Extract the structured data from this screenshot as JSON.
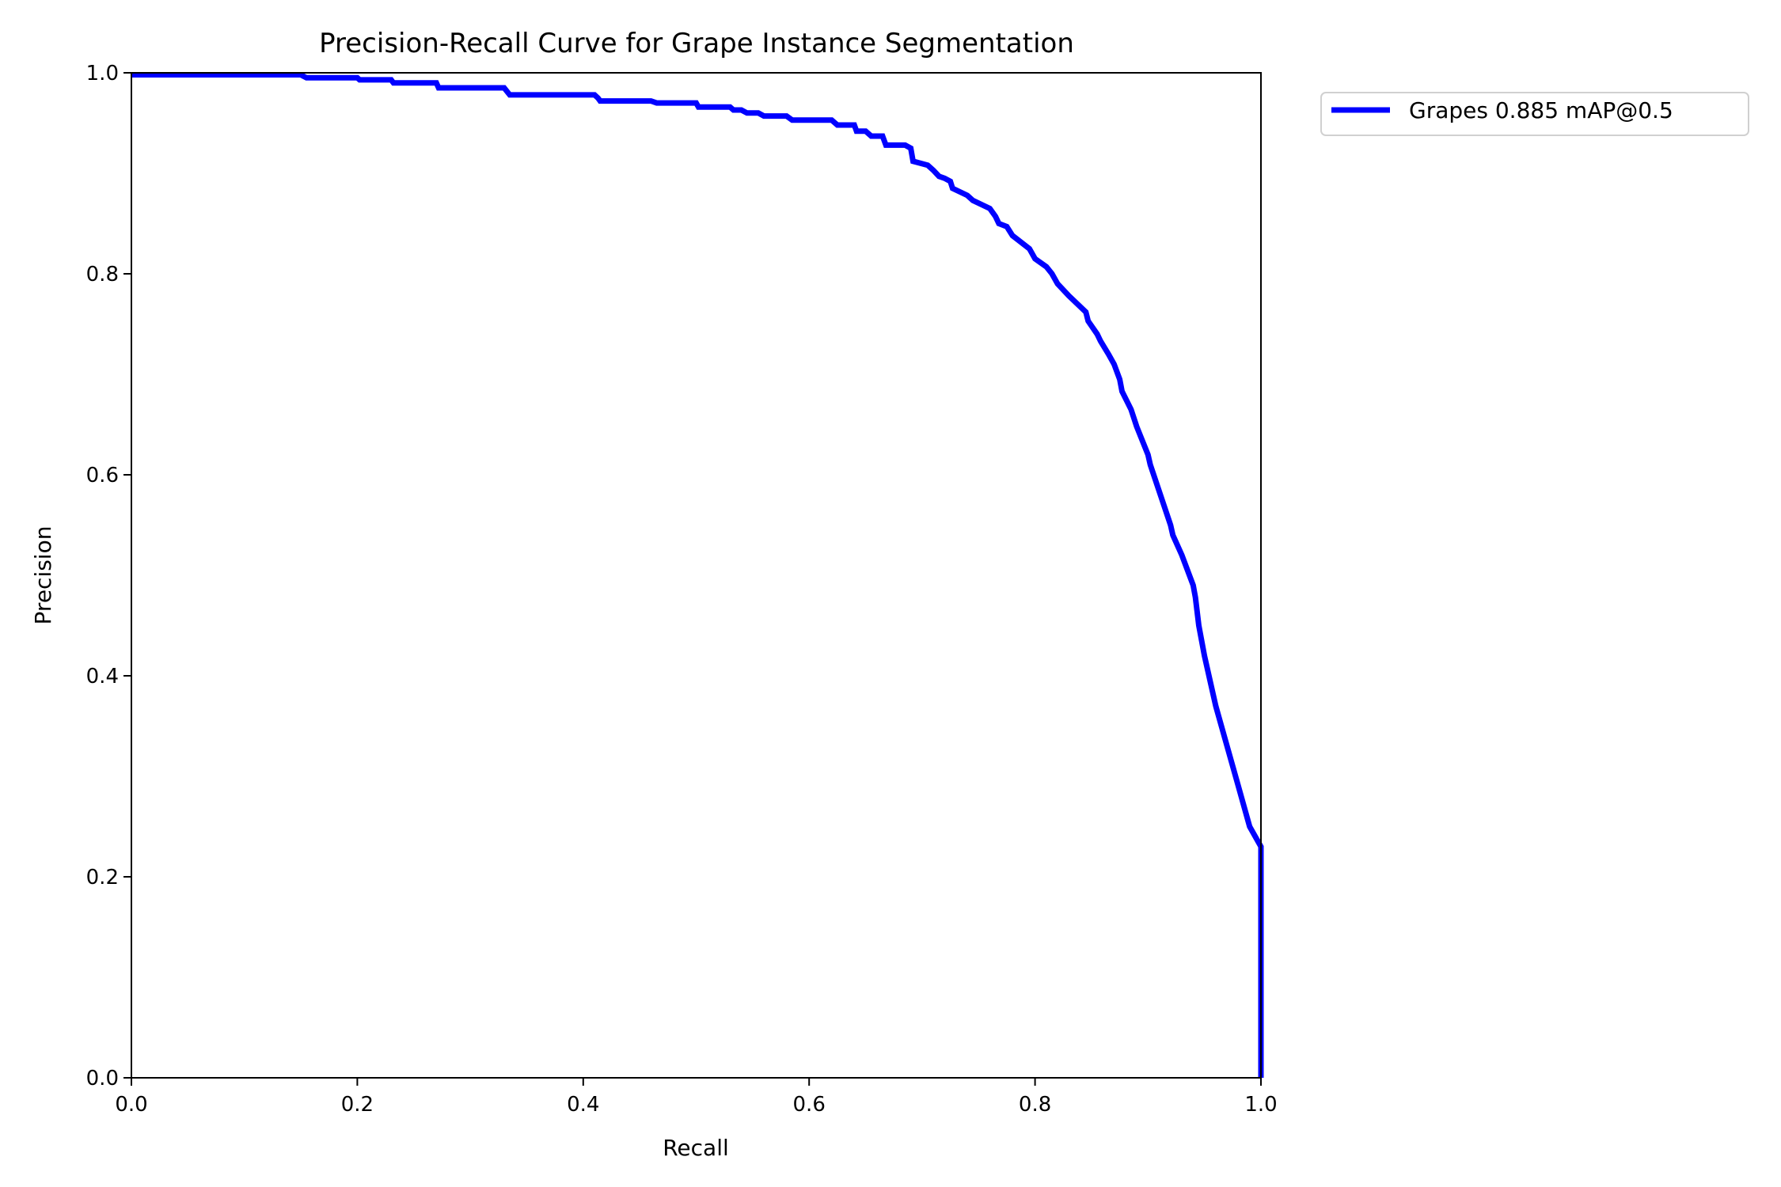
{
  "chart_data": {
    "type": "line",
    "title": "Precision-Recall Curve for Grape Instance Segmentation",
    "xlabel": "Recall",
    "ylabel": "Precision",
    "xlim": [
      0.0,
      1.0
    ],
    "ylim": [
      0.0,
      1.0
    ],
    "xticks": [
      "0.0",
      "0.2",
      "0.4",
      "0.6",
      "0.8",
      "1.0"
    ],
    "yticks": [
      "0.0",
      "0.2",
      "0.4",
      "0.6",
      "0.8",
      "1.0"
    ],
    "grid": false,
    "legend_position": "outside-top-right",
    "series": [
      {
        "name": "Grapes 0.885 mAP@0.5",
        "color": "#0000ff",
        "x": [
          0.0,
          0.15,
          0.155,
          0.2,
          0.202,
          0.23,
          0.232,
          0.27,
          0.272,
          0.33,
          0.335,
          0.41,
          0.413,
          0.415,
          0.46,
          0.465,
          0.5,
          0.502,
          0.53,
          0.533,
          0.54,
          0.545,
          0.555,
          0.56,
          0.58,
          0.585,
          0.62,
          0.625,
          0.64,
          0.642,
          0.65,
          0.655,
          0.665,
          0.668,
          0.685,
          0.69,
          0.692,
          0.705,
          0.71,
          0.715,
          0.72,
          0.725,
          0.727,
          0.74,
          0.745,
          0.76,
          0.765,
          0.768,
          0.775,
          0.78,
          0.795,
          0.8,
          0.81,
          0.815,
          0.82,
          0.83,
          0.845,
          0.847,
          0.855,
          0.858,
          0.865,
          0.87,
          0.875,
          0.877,
          0.885,
          0.89,
          0.9,
          0.902,
          0.92,
          0.922,
          0.93,
          0.94,
          0.942,
          0.945,
          0.95,
          0.96,
          0.97,
          0.98,
          0.99,
          1.0,
          1.0
        ],
        "y": [
          0.998,
          0.998,
          0.995,
          0.995,
          0.993,
          0.993,
          0.99,
          0.99,
          0.985,
          0.985,
          0.978,
          0.978,
          0.975,
          0.972,
          0.972,
          0.97,
          0.97,
          0.966,
          0.966,
          0.963,
          0.963,
          0.96,
          0.96,
          0.957,
          0.957,
          0.953,
          0.953,
          0.948,
          0.948,
          0.942,
          0.942,
          0.937,
          0.937,
          0.928,
          0.928,
          0.925,
          0.912,
          0.908,
          0.903,
          0.897,
          0.895,
          0.892,
          0.885,
          0.878,
          0.873,
          0.865,
          0.857,
          0.85,
          0.847,
          0.838,
          0.825,
          0.815,
          0.807,
          0.8,
          0.79,
          0.778,
          0.762,
          0.753,
          0.74,
          0.733,
          0.72,
          0.71,
          0.695,
          0.683,
          0.665,
          0.648,
          0.62,
          0.61,
          0.55,
          0.54,
          0.52,
          0.49,
          0.478,
          0.45,
          0.42,
          0.37,
          0.33,
          0.29,
          0.25,
          0.23,
          0.0
        ]
      }
    ]
  }
}
